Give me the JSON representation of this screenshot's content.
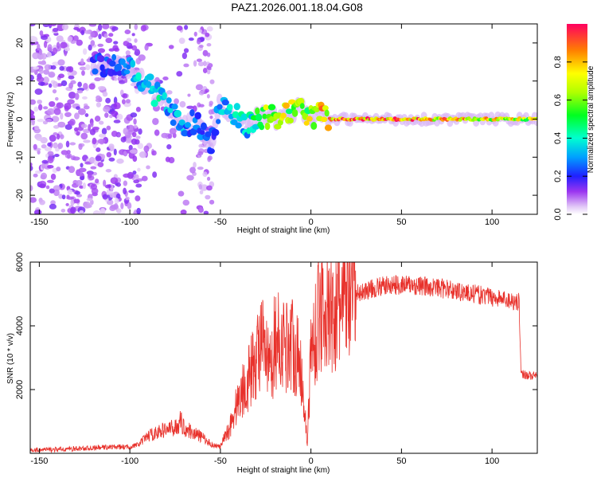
{
  "title": "PAZ1.2026.001.18.04.G08",
  "chart_data": [
    {
      "type": "heatmap",
      "xlabel": "Height of straight line (km)",
      "ylabel": "Frequency (Hz)",
      "xlim": [
        -155,
        125
      ],
      "ylim": [
        -25,
        25
      ],
      "xticks": [
        -150,
        -100,
        -50,
        0,
        50,
        100
      ],
      "yticks": [
        -20,
        -10,
        0,
        10,
        20
      ],
      "colorbar": {
        "label": "Normalized spectral amplitude",
        "range": [
          0,
          1
        ],
        "ticks": [
          0.0,
          0.2,
          0.4,
          0.6,
          0.8
        ],
        "tick_labels": [
          "0.0",
          "0.2",
          "0.4",
          "0.6",
          "0.8"
        ]
      },
      "ridge": [
        {
          "x": -120,
          "freq": 14,
          "amp": 0.25
        },
        {
          "x": -110,
          "freq": 14,
          "amp": 0.28
        },
        {
          "x": -100,
          "freq": 13,
          "amp": 0.3
        },
        {
          "x": -95,
          "freq": 11,
          "amp": 0.4
        },
        {
          "x": -90,
          "freq": 9,
          "amp": 0.45
        },
        {
          "x": -85,
          "freq": 6,
          "amp": 0.45
        },
        {
          "x": -80,
          "freq": 5,
          "amp": 0.4
        },
        {
          "x": -75,
          "freq": 1,
          "amp": 0.38
        },
        {
          "x": -70,
          "freq": -2,
          "amp": 0.35
        },
        {
          "x": -65,
          "freq": -1,
          "amp": 0.3
        },
        {
          "x": -60,
          "freq": -3,
          "amp": 0.28
        },
        {
          "x": -55,
          "freq": -6,
          "amp": 0.25
        },
        {
          "x": -50,
          "freq": 4,
          "amp": 0.35
        },
        {
          "x": -45,
          "freq": 2,
          "amp": 0.4
        },
        {
          "x": -40,
          "freq": 0,
          "amp": 0.45
        },
        {
          "x": -35,
          "freq": -2,
          "amp": 0.4
        },
        {
          "x": -30,
          "freq": 0,
          "amp": 0.55
        },
        {
          "x": -25,
          "freq": 1,
          "amp": 0.7
        },
        {
          "x": -20,
          "freq": 0,
          "amp": 0.85
        },
        {
          "x": -15,
          "freq": 1,
          "amp": 0.8
        },
        {
          "x": -10,
          "freq": 2,
          "amp": 0.75
        },
        {
          "x": -5,
          "freq": 3,
          "amp": 0.7
        },
        {
          "x": 0,
          "freq": 0,
          "amp": 0.8
        },
        {
          "x": 5,
          "freq": 1,
          "amp": 0.85
        },
        {
          "x": 10,
          "freq": 0,
          "amp": 0.9
        },
        {
          "x": 20,
          "freq": 0,
          "amp": 1.0
        },
        {
          "x": 40,
          "freq": 0,
          "amp": 1.0
        },
        {
          "x": 60,
          "freq": 0,
          "amp": 0.95
        },
        {
          "x": 80,
          "freq": 0,
          "amp": 0.9
        },
        {
          "x": 100,
          "freq": 0,
          "amp": 0.85
        },
        {
          "x": 120,
          "freq": 0,
          "amp": 0.8
        }
      ]
    },
    {
      "type": "line",
      "xlabel": "Height of straight line (km)",
      "ylabel": "SNR (10 * v/v)",
      "xlim": [
        -155,
        125
      ],
      "ylim": [
        0,
        6000
      ],
      "xticks": [
        -150,
        -100,
        -50,
        0,
        50,
        100
      ],
      "yticks": [
        2000,
        4000,
        6000
      ],
      "series": [
        {
          "name": "SNR",
          "color": "#e8312b",
          "x": [
            -155,
            -140,
            -130,
            -110,
            -100,
            -95,
            -90,
            -85,
            -80,
            -75,
            -72,
            -70,
            -65,
            -60,
            -55,
            -50,
            -45,
            -40,
            -35,
            -30,
            -28,
            -25,
            -22,
            -20,
            -15,
            -10,
            -5,
            -2,
            0,
            2,
            5,
            8,
            10,
            12,
            15,
            20,
            25,
            30,
            40,
            50,
            60,
            70,
            80,
            90,
            100,
            110,
            115,
            116,
            120,
            125
          ],
          "y": [
            100,
            120,
            140,
            200,
            200,
            280,
            550,
            650,
            750,
            800,
            1000,
            800,
            650,
            500,
            280,
            200,
            800,
            1700,
            2300,
            3000,
            3600,
            3000,
            2500,
            3600,
            3400,
            3500,
            2500,
            300,
            3200,
            3700,
            4500,
            4700,
            4200,
            4300,
            4600,
            4800,
            5000,
            5100,
            5250,
            5300,
            5250,
            5200,
            5100,
            5000,
            4900,
            4800,
            4750,
            2500,
            2450,
            2400
          ]
        }
      ]
    }
  ]
}
